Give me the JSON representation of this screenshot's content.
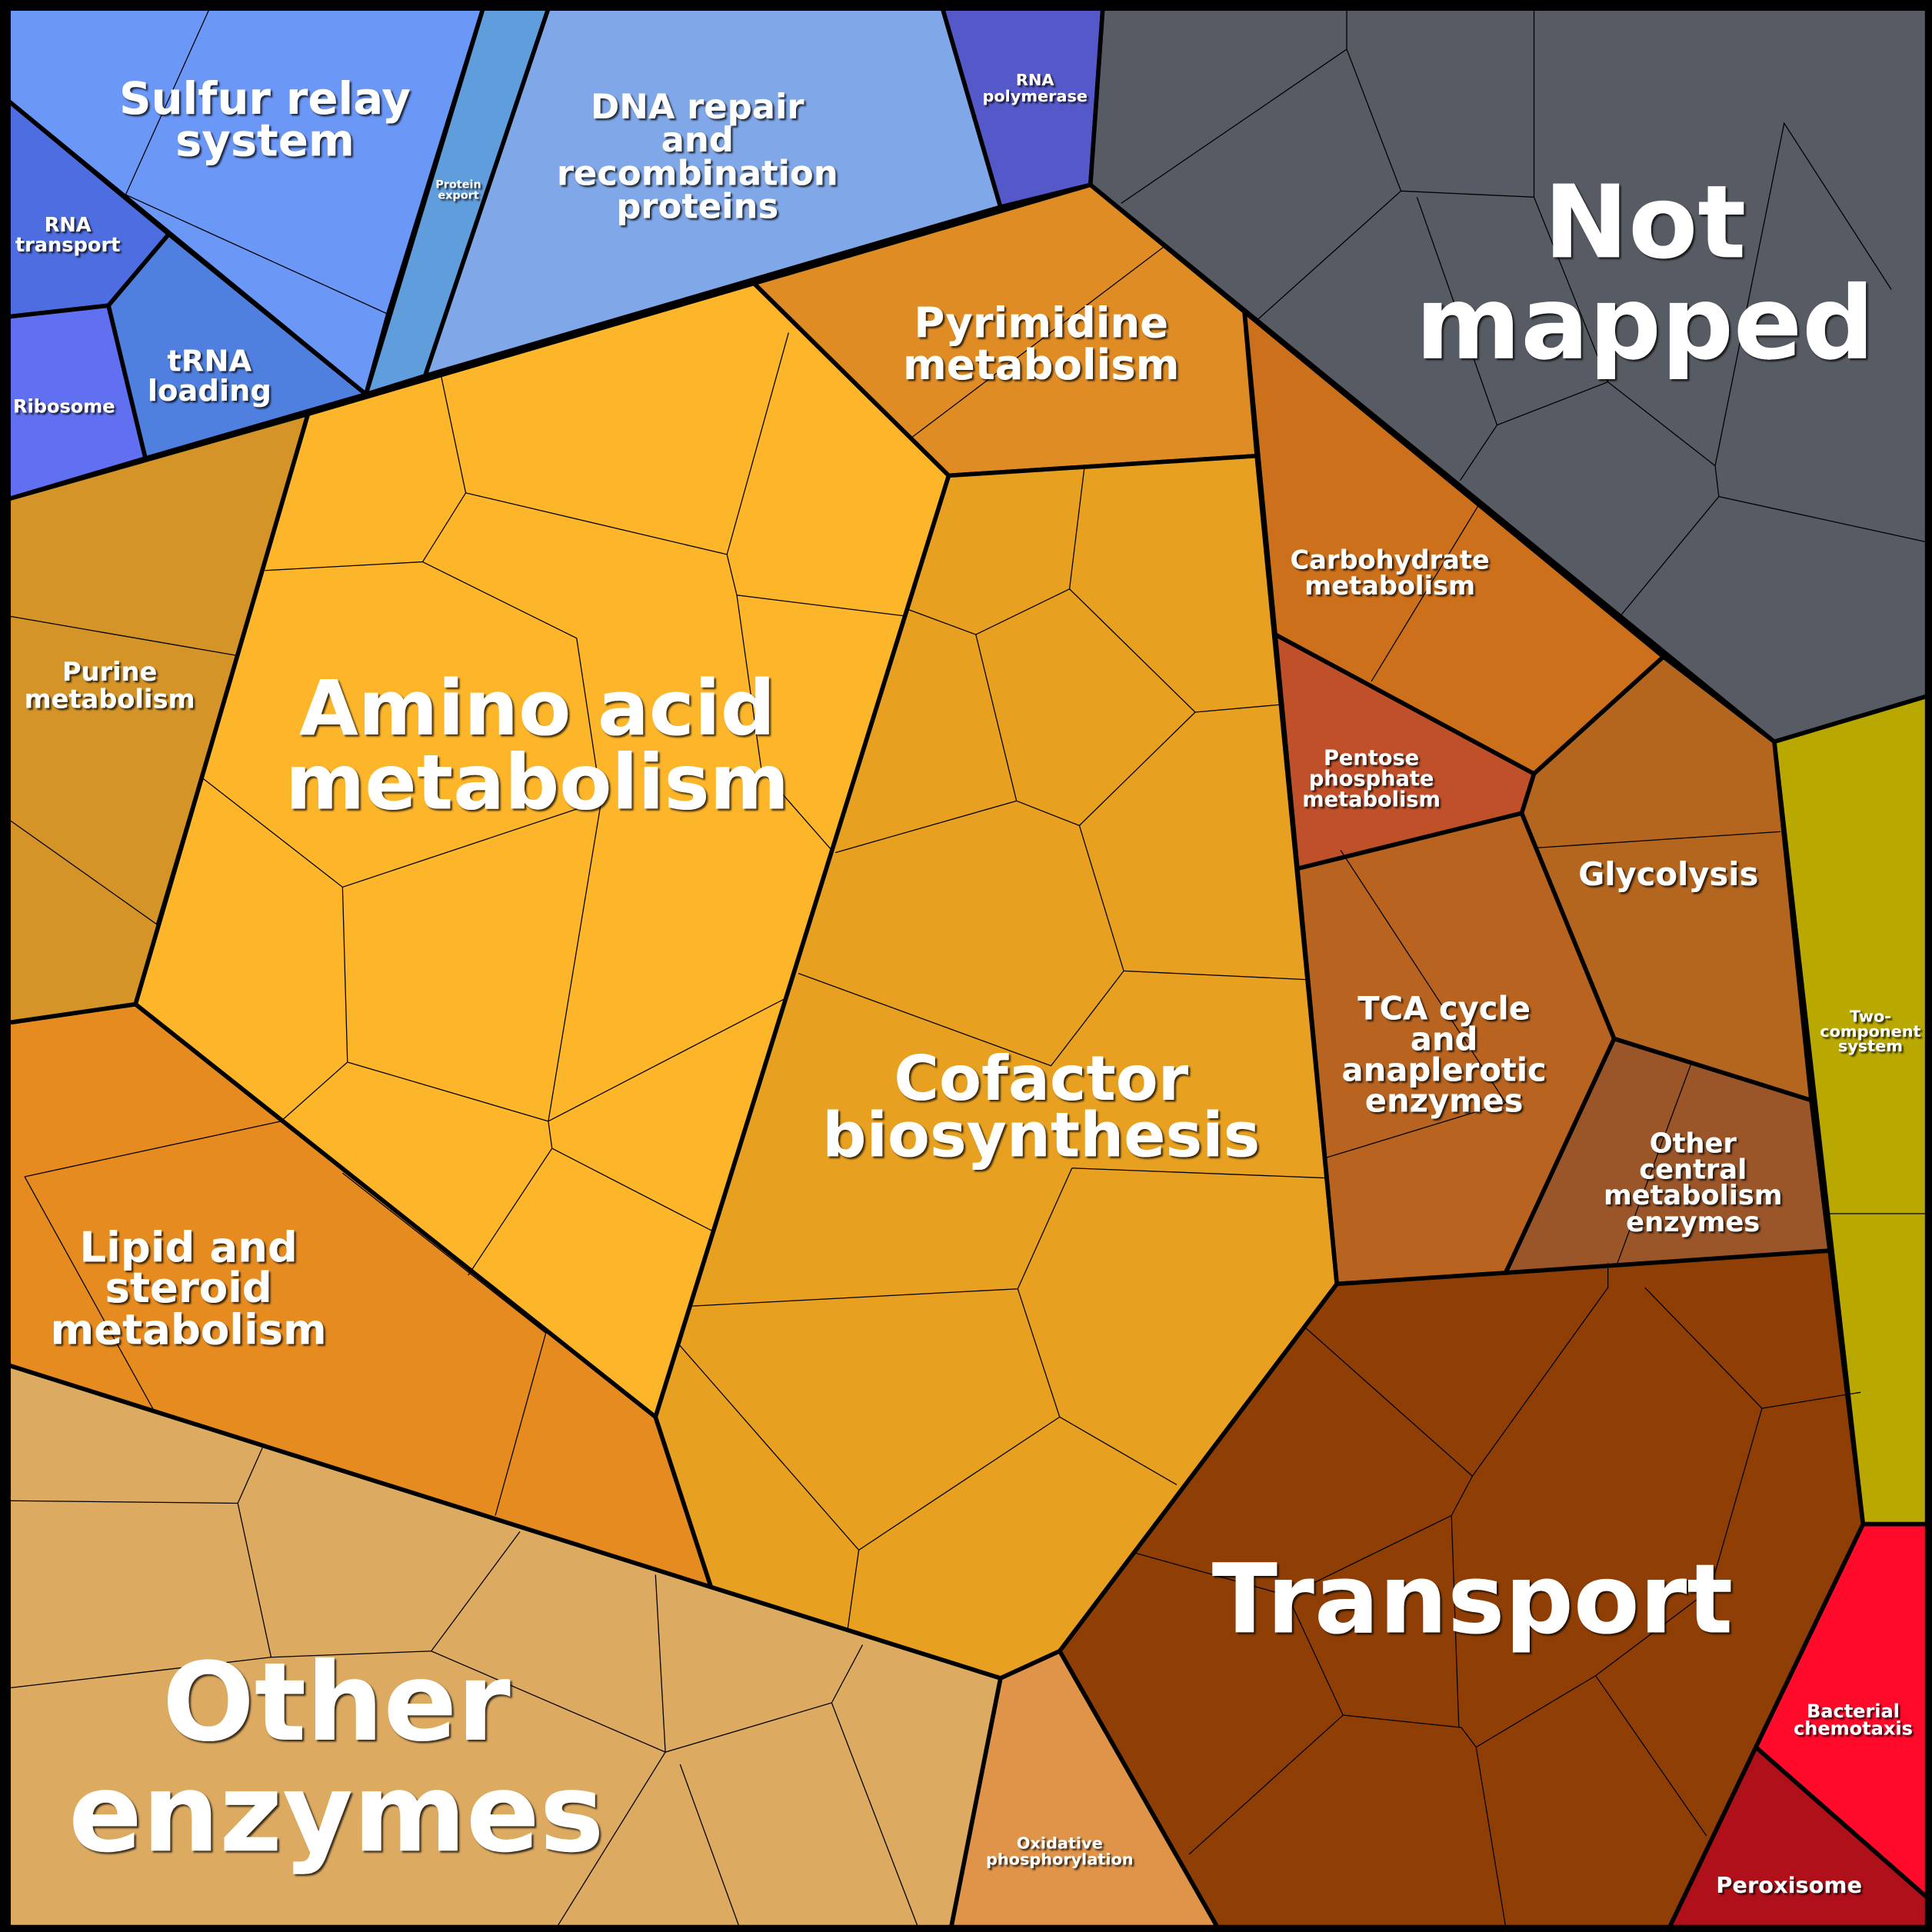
{
  "regions": [
    {
      "lines": [
        "Sulfur relay",
        "system"
      ]
    },
    {
      "lines": [
        "Protein",
        "export"
      ]
    },
    {
      "lines": [
        "DNA repair",
        "and",
        "recombination",
        "proteins"
      ]
    },
    {
      "lines": [
        "RNA",
        "polymerase"
      ]
    },
    {
      "lines": [
        "RNA",
        "transport"
      ]
    },
    {
      "lines": [
        "tRNA",
        "loading"
      ]
    },
    {
      "lines": [
        "Ribosome"
      ]
    },
    {
      "lines": [
        "Not",
        "mapped"
      ]
    },
    {
      "lines": [
        "Pyrimidine",
        "metabolism"
      ]
    },
    {
      "lines": [
        "Amino acid",
        "metabolism"
      ]
    },
    {
      "lines": [
        "Purine",
        "metabolism"
      ]
    },
    {
      "lines": [
        "Carbohydrate",
        "metabolism"
      ]
    },
    {
      "lines": [
        "Pentose",
        "phosphate",
        "metabolism"
      ]
    },
    {
      "lines": [
        "Glycolysis"
      ]
    },
    {
      "lines": [
        "TCA cycle",
        "and",
        "anaplerotic",
        "enzymes"
      ]
    },
    {
      "lines": [
        "Other",
        "central",
        "metabolism",
        "enzymes"
      ]
    },
    {
      "lines": [
        "Cofactor",
        "biosynthesis"
      ]
    },
    {
      "lines": [
        "Lipid and",
        "steroid",
        "metabolism"
      ]
    },
    {
      "lines": [
        "Two-",
        "component",
        "system"
      ]
    },
    {
      "lines": [
        "Transport"
      ]
    },
    {
      "lines": [
        "Bacterial",
        "chemotaxis"
      ]
    },
    {
      "lines": [
        "Peroxisome"
      ]
    },
    {
      "lines": [
        "Oxidative",
        "phosphorylation"
      ]
    },
    {
      "lines": [
        "Other",
        "enzymes"
      ]
    }
  ]
}
